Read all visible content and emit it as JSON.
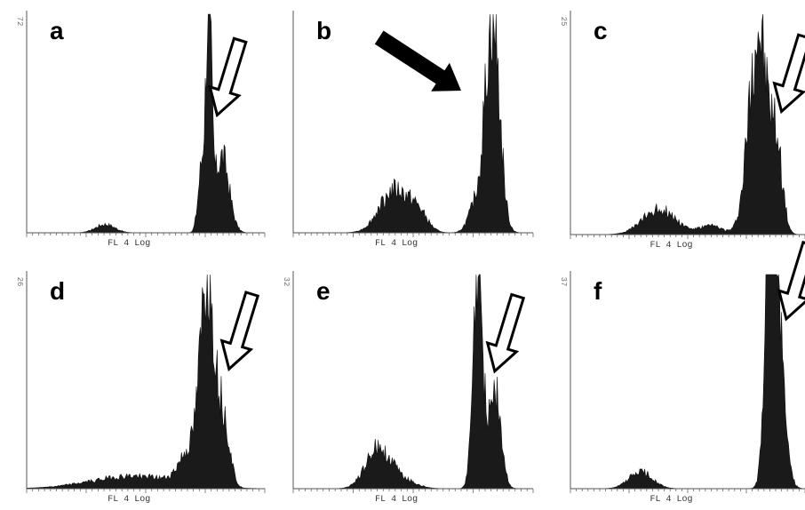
{
  "chart_data": [
    {
      "type": "area",
      "panel_letter": "a",
      "xlabel": "FL 4 Log",
      "ymax_label": "72",
      "peaks": [
        {
          "c": 0.33,
          "h": 0.04,
          "w": 0.04
        },
        {
          "c": 0.765,
          "h": 1.0,
          "w": 0.012
        },
        {
          "c": 0.735,
          "h": 0.3,
          "w": 0.015
        },
        {
          "c": 0.82,
          "h": 0.36,
          "w": 0.03
        }
      ],
      "arrow": {
        "type": "open",
        "target": [
          0.8,
          0.47
        ]
      }
    },
    {
      "type": "area",
      "panel_letter": "b",
      "xlabel": "FL 4 Log",
      "ymax_label": "",
      "peaks": [
        {
          "c": 0.42,
          "h": 0.2,
          "w": 0.06
        },
        {
          "c": 0.52,
          "h": 0.08,
          "w": 0.04
        },
        {
          "c": 0.83,
          "h": 1.0,
          "w": 0.03
        },
        {
          "c": 0.76,
          "h": 0.12,
          "w": 0.03
        }
      ],
      "arrow": {
        "type": "solid",
        "target": [
          0.7,
          0.36
        ]
      }
    },
    {
      "type": "area",
      "panel_letter": "c",
      "xlabel": "FL 4 Log",
      "ymax_label": "25",
      "peaks": [
        {
          "c": 0.38,
          "h": 0.12,
          "w": 0.07
        },
        {
          "c": 0.6,
          "h": 0.04,
          "w": 0.05
        },
        {
          "c": 0.8,
          "h": 0.95,
          "w": 0.04
        },
        {
          "c": 0.88,
          "h": 0.35,
          "w": 0.025
        }
      ],
      "arrow": {
        "type": "open",
        "target": [
          0.9,
          0.45
        ]
      }
    },
    {
      "type": "area",
      "panel_letter": "d",
      "xlabel": "FL 4 Log",
      "ymax_label": "26",
      "peaks": [
        {
          "c": 0.45,
          "h": 0.06,
          "w": 0.18
        },
        {
          "c": 0.76,
          "h": 1.0,
          "w": 0.03
        },
        {
          "c": 0.68,
          "h": 0.15,
          "w": 0.04
        },
        {
          "c": 0.83,
          "h": 0.3,
          "w": 0.025
        }
      ],
      "arrow": {
        "type": "open",
        "target": [
          0.85,
          0.45
        ]
      }
    },
    {
      "type": "area",
      "panel_letter": "e",
      "xlabel": "FL 4 Log",
      "ymax_label": "32",
      "peaks": [
        {
          "c": 0.35,
          "h": 0.18,
          "w": 0.05
        },
        {
          "c": 0.44,
          "h": 0.05,
          "w": 0.06
        },
        {
          "c": 0.77,
          "h": 1.0,
          "w": 0.02
        },
        {
          "c": 0.84,
          "h": 0.48,
          "w": 0.025
        }
      ],
      "arrow": {
        "type": "open",
        "target": [
          0.84,
          0.46
        ]
      }
    },
    {
      "type": "area",
      "panel_letter": "f",
      "xlabel": "FL 4 Log",
      "ymax_label": "37",
      "peaks": [
        {
          "c": 0.3,
          "h": 0.08,
          "w": 0.05
        },
        {
          "c": 0.85,
          "h": 1.0,
          "w": 0.02
        },
        {
          "c": 0.88,
          "h": 0.8,
          "w": 0.03
        }
      ],
      "arrow": {
        "type": "open",
        "target": [
          0.92,
          0.22
        ]
      }
    }
  ]
}
